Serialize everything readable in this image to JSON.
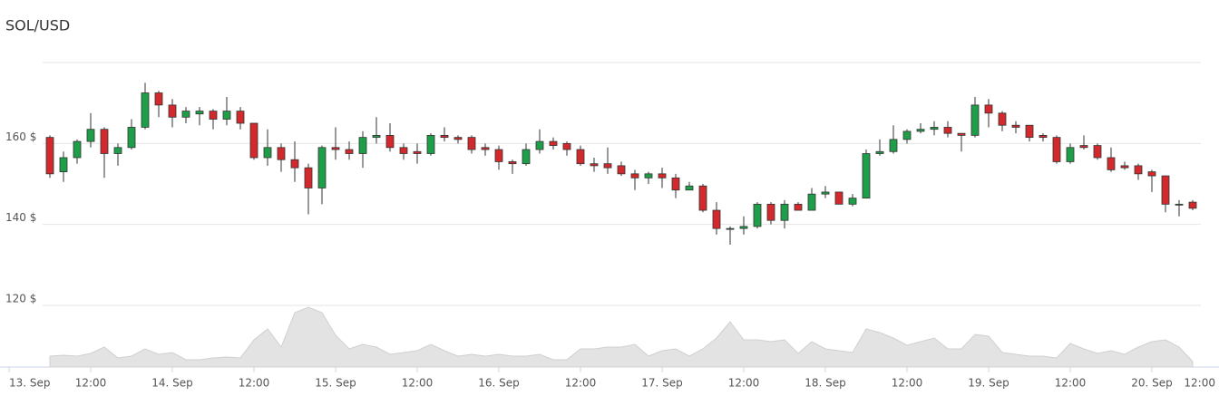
{
  "chart_data": {
    "type": "candlestick",
    "title": "SOL/USD",
    "x": [
      6,
      8,
      10,
      12,
      14,
      16,
      18,
      20,
      22,
      24,
      26,
      28,
      30,
      32,
      34,
      36,
      38,
      40,
      42,
      44,
      46,
      48,
      50,
      52,
      54,
      56,
      58,
      60,
      62,
      64,
      66,
      68,
      70,
      72,
      74,
      76,
      78,
      80,
      82,
      84,
      86,
      88,
      90,
      92,
      94,
      96,
      98,
      100,
      102,
      104,
      106,
      108,
      110,
      112,
      114,
      116,
      118,
      120,
      122,
      124,
      126,
      128,
      130,
      132,
      134,
      136,
      138,
      140,
      142,
      144,
      146,
      148,
      150,
      152,
      154,
      156,
      158,
      160,
      162,
      164,
      166,
      168,
      170,
      172,
      174
    ],
    "open": [
      161.5,
      153,
      156.5,
      160.5,
      163.5,
      157.5,
      159,
      164,
      172.5,
      169.5,
      166.5,
      167.3,
      168,
      166,
      168,
      165,
      156.5,
      159,
      156,
      154,
      149,
      159,
      158.5,
      157.5,
      161.5,
      162,
      159,
      158,
      157.5,
      162,
      161.5,
      161.5,
      159,
      158.5,
      155.5,
      155,
      158.5,
      160.5,
      160,
      158.5,
      155,
      155,
      154.5,
      152.5,
      151.5,
      152.5,
      151.5,
      148.5,
      149.5,
      143.5,
      139,
      139,
      139.5,
      145,
      141,
      145,
      143.5,
      147.5,
      148,
      145,
      146.5,
      157.5,
      158,
      161,
      163,
      163.5,
      164,
      162.5,
      162,
      169.5,
      167.5,
      164.5,
      164.5,
      162,
      161.5,
      155.5,
      159.5,
      159.5,
      156.5,
      154.5,
      154.5,
      153,
      152,
      145,
      145.5
    ],
    "high": [
      162,
      158,
      161,
      167.5,
      164,
      160,
      166,
      175,
      173,
      171,
      169,
      169,
      168.5,
      171.5,
      169,
      165,
      163.5,
      160,
      160.5,
      155,
      159.5,
      164,
      160.5,
      163,
      166.5,
      165,
      160,
      160,
      162.5,
      164,
      162,
      162,
      160,
      159.5,
      156,
      160,
      163.5,
      161.5,
      160.5,
      159.5,
      156.5,
      159,
      155.5,
      153.5,
      153,
      154,
      152.5,
      150.5,
      150,
      145.5,
      139.5,
      142,
      145.5,
      145.5,
      146,
      145.5,
      149,
      149.5,
      148,
      147.5,
      158.5,
      161,
      164.5,
      163.5,
      165,
      165.5,
      165.5,
      162.5,
      171.5,
      171,
      168,
      165.5,
      164.5,
      162.5,
      162,
      160,
      162,
      160,
      159,
      155.5,
      155,
      153.5,
      152,
      146,
      146
    ],
    "low": [
      151.5,
      150.5,
      155,
      159,
      151.5,
      154.5,
      158.5,
      163.5,
      166.5,
      164,
      165,
      164.5,
      163.5,
      164.5,
      163.5,
      156,
      154.5,
      153,
      150.5,
      142.5,
      145,
      156,
      156,
      154,
      160,
      158,
      156,
      155,
      157,
      160.5,
      160,
      157.5,
      157,
      153.5,
      152.5,
      154.5,
      157.5,
      158.5,
      157,
      154.5,
      153,
      152.5,
      152,
      148.5,
      150,
      149,
      146.5,
      148.5,
      143,
      137.5,
      135,
      137.5,
      139,
      140,
      139,
      143.5,
      143.5,
      146.5,
      145,
      144.5,
      146.5,
      157,
      157.5,
      160,
      162.5,
      162,
      161.5,
      158,
      161.5,
      164,
      163,
      162.5,
      160.5,
      160.5,
      155,
      155,
      158.5,
      156,
      153,
      153.5,
      151,
      148,
      143,
      142,
      143.5
    ],
    "close": [
      152.5,
      156.5,
      160.5,
      163.5,
      157.5,
      159,
      164,
      172.5,
      169.5,
      166.5,
      168,
      168,
      166,
      168,
      165,
      156.5,
      159,
      156,
      154,
      149,
      159,
      158.5,
      157.5,
      161.5,
      162,
      159,
      157.5,
      157.5,
      162,
      161.5,
      161,
      158.5,
      158.5,
      155.5,
      155,
      158.5,
      160.5,
      159.5,
      158.5,
      155,
      154.5,
      154,
      152.5,
      151.5,
      152.5,
      151.5,
      148.5,
      149.5,
      143.5,
      139,
      139,
      139.5,
      145,
      141,
      145,
      143.5,
      147.5,
      148,
      145,
      146.5,
      157.5,
      158,
      161,
      163,
      163.5,
      164,
      162.5,
      162,
      169.5,
      167.5,
      164.5,
      164,
      161.5,
      161.5,
      155.5,
      159,
      159,
      156.5,
      153.5,
      154,
      152.5,
      152,
      145,
      145,
      144
    ],
    "volume": [
      12,
      13,
      12,
      15,
      22,
      10,
      12,
      20,
      14,
      16,
      8,
      8,
      10,
      11,
      10,
      30,
      42,
      22,
      60,
      66,
      60,
      35,
      20,
      25,
      22,
      14,
      16,
      18,
      25,
      18,
      12,
      14,
      12,
      14,
      12,
      12,
      14,
      8,
      8,
      20,
      20,
      22,
      22,
      25,
      12,
      18,
      20,
      12,
      20,
      32,
      50,
      30,
      30,
      28,
      30,
      15,
      28,
      20,
      18,
      16,
      42,
      38,
      32,
      24,
      28,
      32,
      20,
      20,
      36,
      34,
      16,
      14,
      12,
      12,
      10,
      26,
      20,
      15,
      18,
      14,
      22,
      28,
      30,
      22,
      6
    ],
    "up_color": "#1f9e4a",
    "down_color": "#d2292d",
    "volume_color": "#e3e3e3",
    "xlim": [
      0,
      178
    ],
    "xticks": [
      {
        "value": 0,
        "label": "13. Sep"
      },
      {
        "value": 12,
        "label": "12:00"
      },
      {
        "value": 24,
        "label": "14. Sep"
      },
      {
        "value": 36,
        "label": "12:00"
      },
      {
        "value": 48,
        "label": "15. Sep"
      },
      {
        "value": 60,
        "label": "12:00"
      },
      {
        "value": 72,
        "label": "16. Sep"
      },
      {
        "value": 84,
        "label": "12:00"
      },
      {
        "value": 96,
        "label": "17. Sep"
      },
      {
        "value": 108,
        "label": "12:00"
      },
      {
        "value": 120,
        "label": "18. Sep"
      },
      {
        "value": 132,
        "label": "12:00"
      },
      {
        "value": 144,
        "label": "19. Sep"
      },
      {
        "value": 156,
        "label": "12:00"
      },
      {
        "value": 168,
        "label": "20. Sep"
      },
      {
        "value": 180,
        "label": "12:00"
      }
    ],
    "ylim": [
      120,
      180
    ],
    "yticks": [
      {
        "value": 120,
        "label": "120 $"
      },
      {
        "value": 140,
        "label": "140 $"
      },
      {
        "value": 160,
        "label": "160 $"
      }
    ],
    "vlim": [
      0,
      70
    ],
    "grid": true
  }
}
